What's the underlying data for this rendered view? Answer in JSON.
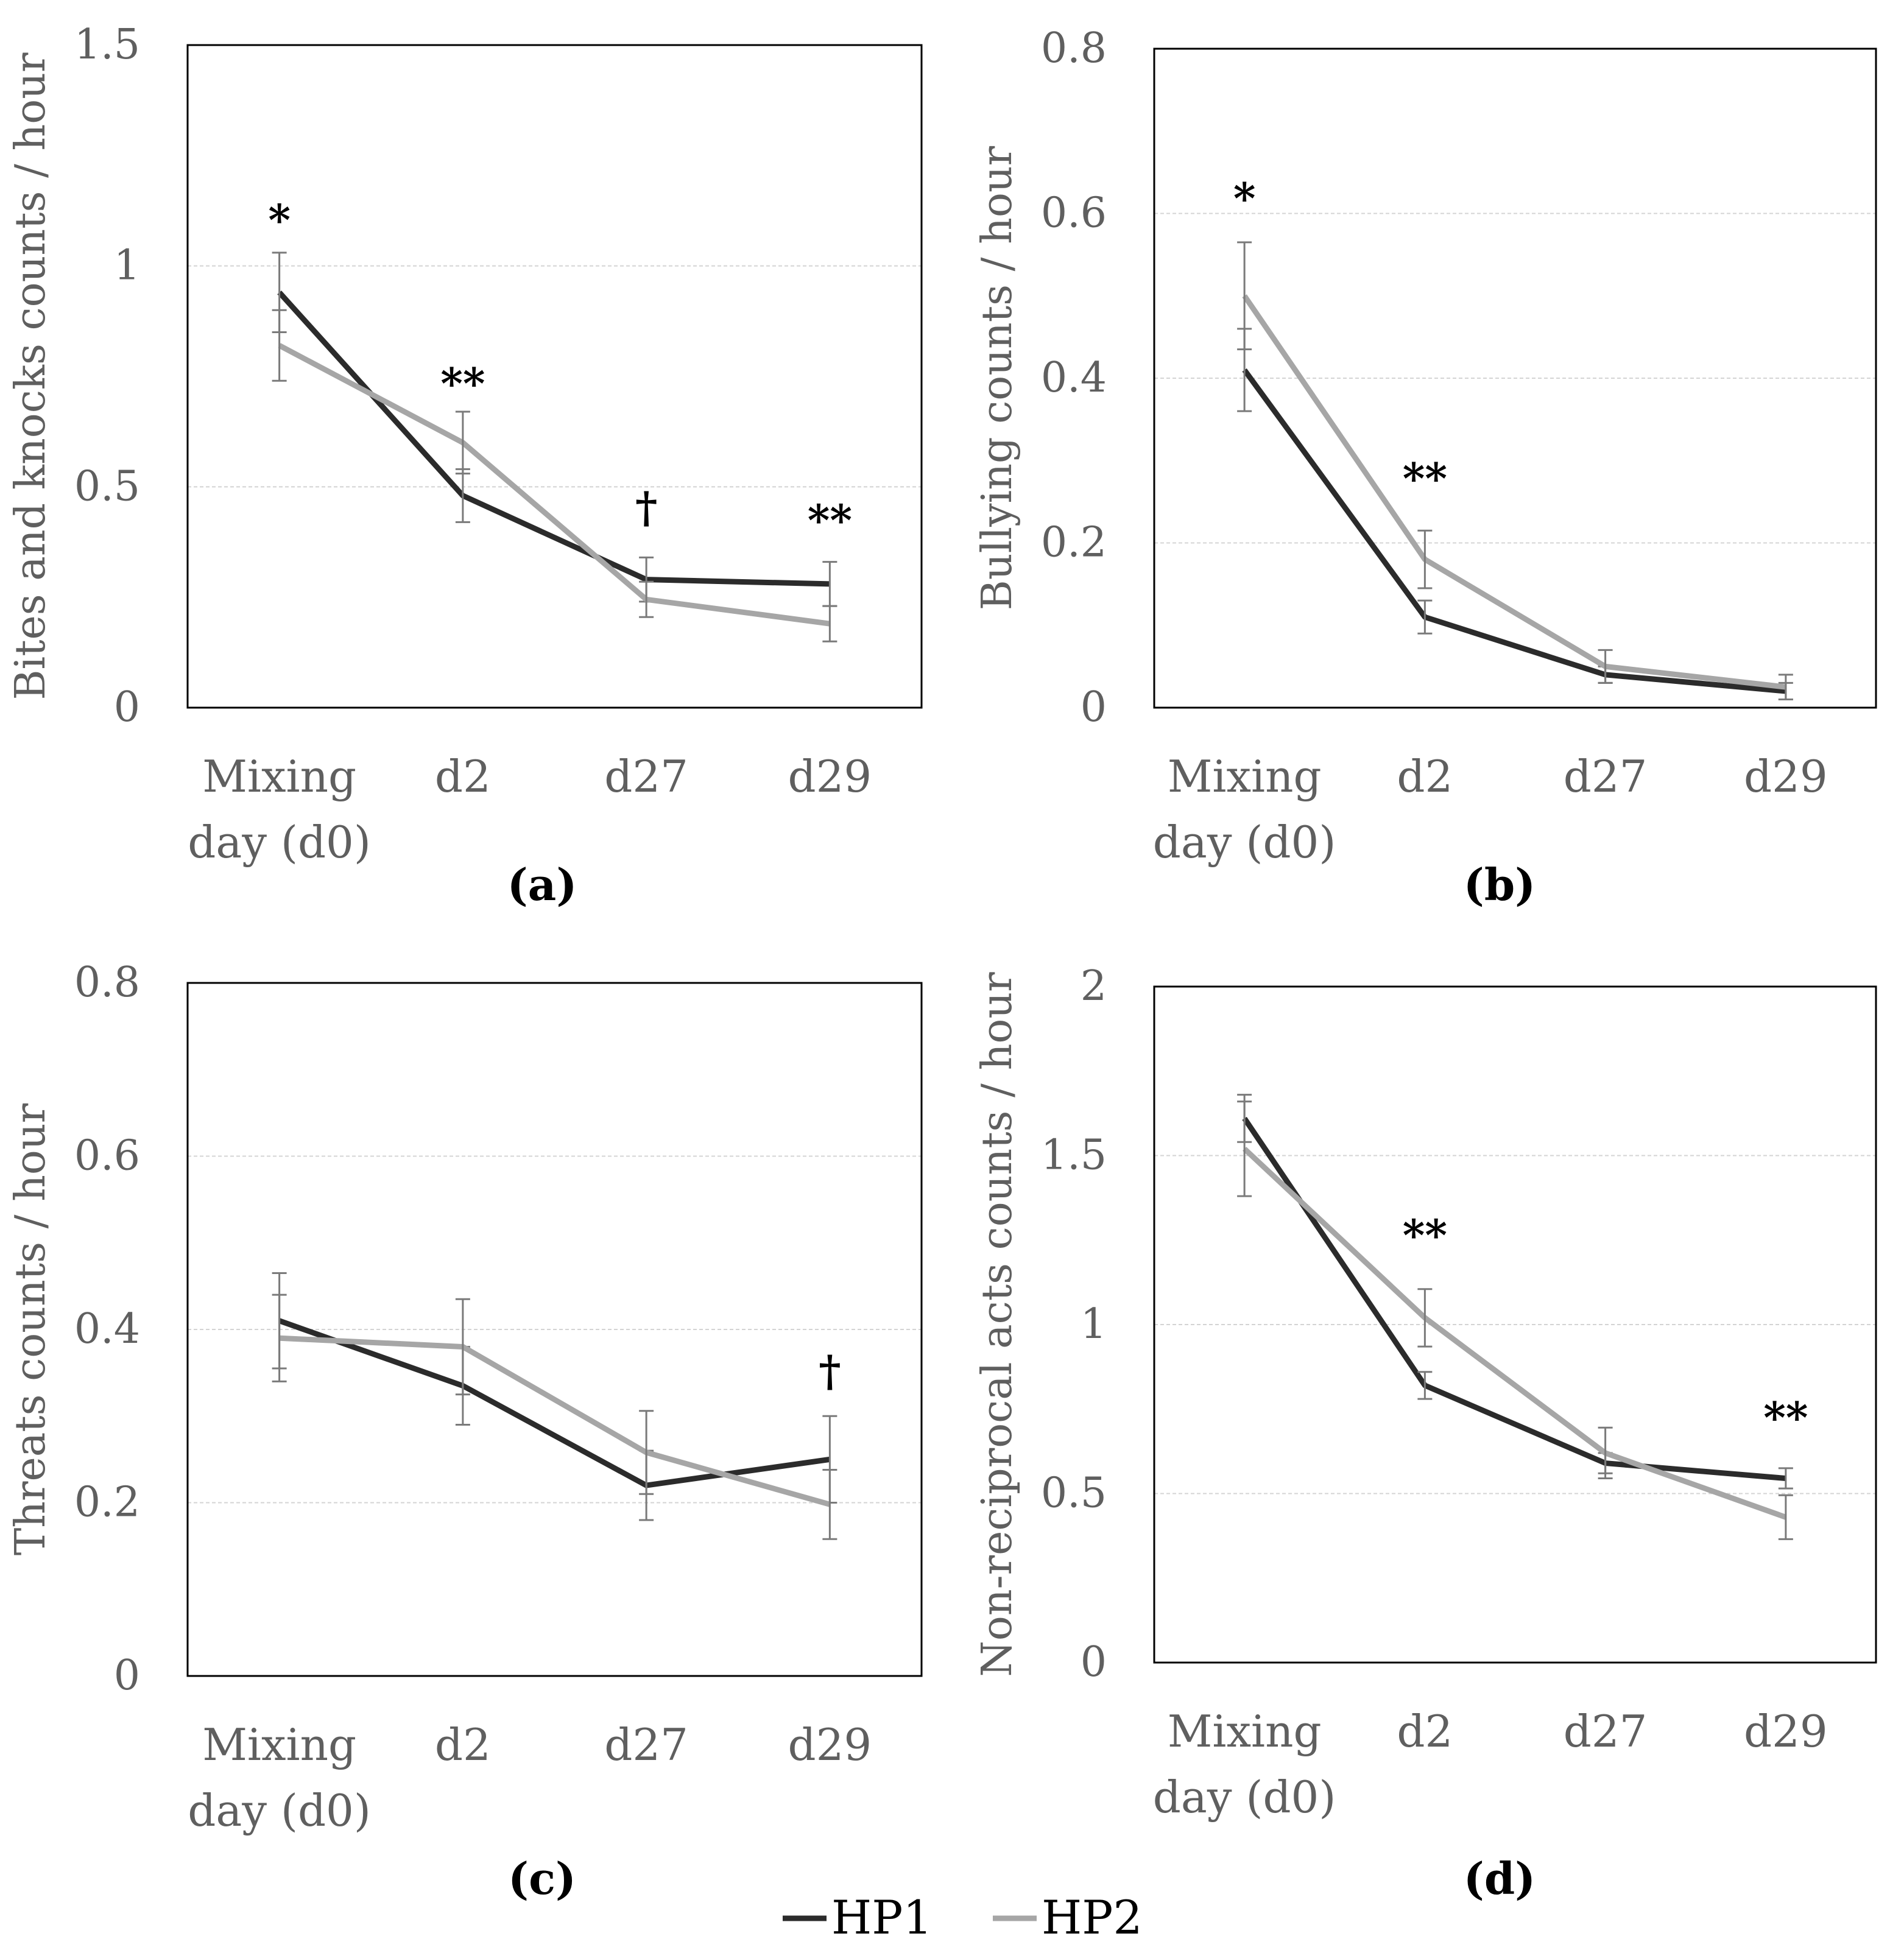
{
  "colors": {
    "HP1": "#2b2b2b",
    "HP2": "#a6a6a6",
    "errorbar": "#7a7a7a",
    "grid": "#d4d4d4",
    "text": "#5f5f5f"
  },
  "legend": {
    "items": [
      {
        "name": "HP1",
        "label": "HP1",
        "symbol": "—"
      },
      {
        "name": "HP2",
        "label": "HP2",
        "symbol": "—"
      }
    ]
  },
  "chart_data": [
    {
      "panel": "a",
      "panel_label": "(a)",
      "type": "line",
      "ylabel": "Bites and knocks counts / hour",
      "ylim": [
        0,
        1.5
      ],
      "yticks": [
        0,
        0.5,
        1,
        1.5
      ],
      "ytick_labels": [
        "0",
        "0.5",
        "1",
        "1.5"
      ],
      "categories": [
        [
          "Mixing",
          "day (d0)"
        ],
        [
          "d2"
        ],
        [
          "d27"
        ],
        [
          "d29"
        ]
      ],
      "grid": true,
      "series": [
        {
          "name": "HP1",
          "values": [
            0.94,
            0.48,
            0.29,
            0.28
          ],
          "errors": [
            0.09,
            0.06,
            0.05,
            0.05
          ]
        },
        {
          "name": "HP2",
          "values": [
            0.82,
            0.6,
            0.245,
            0.19
          ],
          "errors": [
            0.08,
            0.07,
            0.04,
            0.04
          ]
        }
      ],
      "annotations": [
        "*",
        "**",
        "†",
        "**"
      ],
      "annotation_values": [
        1.07,
        0.7,
        0.42,
        0.39
      ]
    },
    {
      "panel": "b",
      "panel_label": "(b)",
      "type": "line",
      "ylabel": "Bullying counts / hour",
      "ylim": [
        0,
        0.8
      ],
      "yticks": [
        0,
        0.2,
        0.4,
        0.6,
        0.8
      ],
      "ytick_labels": [
        "0",
        "0.2",
        "0.4",
        "0.6",
        "0.8"
      ],
      "categories": [
        [
          "Mixing",
          "day (d0)"
        ],
        [
          "d2"
        ],
        [
          "d27"
        ],
        [
          "d29"
        ]
      ],
      "grid": true,
      "series": [
        {
          "name": "HP1",
          "values": [
            0.41,
            0.11,
            0.04,
            0.02
          ],
          "errors": [
            0.05,
            0.02,
            0.01,
            0.01
          ]
        },
        {
          "name": "HP2",
          "values": [
            0.5,
            0.18,
            0.05,
            0.025
          ],
          "errors": [
            0.065,
            0.035,
            0.02,
            0.015
          ]
        }
      ],
      "annotations": [
        "*",
        "**",
        "",
        ""
      ],
      "annotation_values": [
        0.6,
        0.26,
        null,
        null
      ]
    },
    {
      "panel": "c",
      "panel_label": "(c)",
      "type": "line",
      "ylabel": "Threats counts / hour",
      "ylim": [
        0,
        0.8
      ],
      "yticks": [
        0,
        0.2,
        0.4,
        0.6,
        0.8
      ],
      "ytick_labels": [
        "0",
        "0.2",
        "0.4",
        "0.6",
        "0.8"
      ],
      "categories": [
        [
          "Mixing",
          "day (d0)"
        ],
        [
          "d2"
        ],
        [
          "d27"
        ],
        [
          "d29"
        ]
      ],
      "grid": true,
      "series": [
        {
          "name": "HP1",
          "values": [
            0.41,
            0.335,
            0.22,
            0.25
          ],
          "errors": [
            0.055,
            0.045,
            0.04,
            0.05
          ]
        },
        {
          "name": "HP2",
          "values": [
            0.39,
            0.38,
            0.258,
            0.198
          ],
          "errors": [
            0.05,
            0.055,
            0.048,
            0.04
          ]
        }
      ],
      "annotations": [
        "",
        "",
        "",
        "†"
      ],
      "annotation_values": [
        null,
        null,
        null,
        0.335
      ]
    },
    {
      "panel": "d",
      "panel_label": "(d)",
      "type": "line",
      "ylabel": "Non-reciprocal acts counts / hour",
      "ylim": [
        0,
        2
      ],
      "yticks": [
        0,
        0.5,
        1,
        1.5,
        2
      ],
      "ytick_labels": [
        "0",
        "0.5",
        "1",
        "1.5",
        "2"
      ],
      "categories": [
        [
          "Mixing",
          "day (d0)"
        ],
        [
          "d2"
        ],
        [
          "d27"
        ],
        [
          "d29"
        ]
      ],
      "grid": true,
      "series": [
        {
          "name": "HP1",
          "values": [
            1.61,
            0.82,
            0.59,
            0.545
          ],
          "errors": [
            0.07,
            0.04,
            0.03,
            0.03
          ]
        },
        {
          "name": "HP2",
          "values": [
            1.52,
            1.02,
            0.62,
            0.43
          ],
          "errors": [
            0.14,
            0.085,
            0.075,
            0.065
          ]
        }
      ],
      "annotations": [
        "",
        "**",
        "",
        "**"
      ],
      "annotation_values": [
        null,
        1.22,
        null,
        0.68
      ]
    }
  ]
}
